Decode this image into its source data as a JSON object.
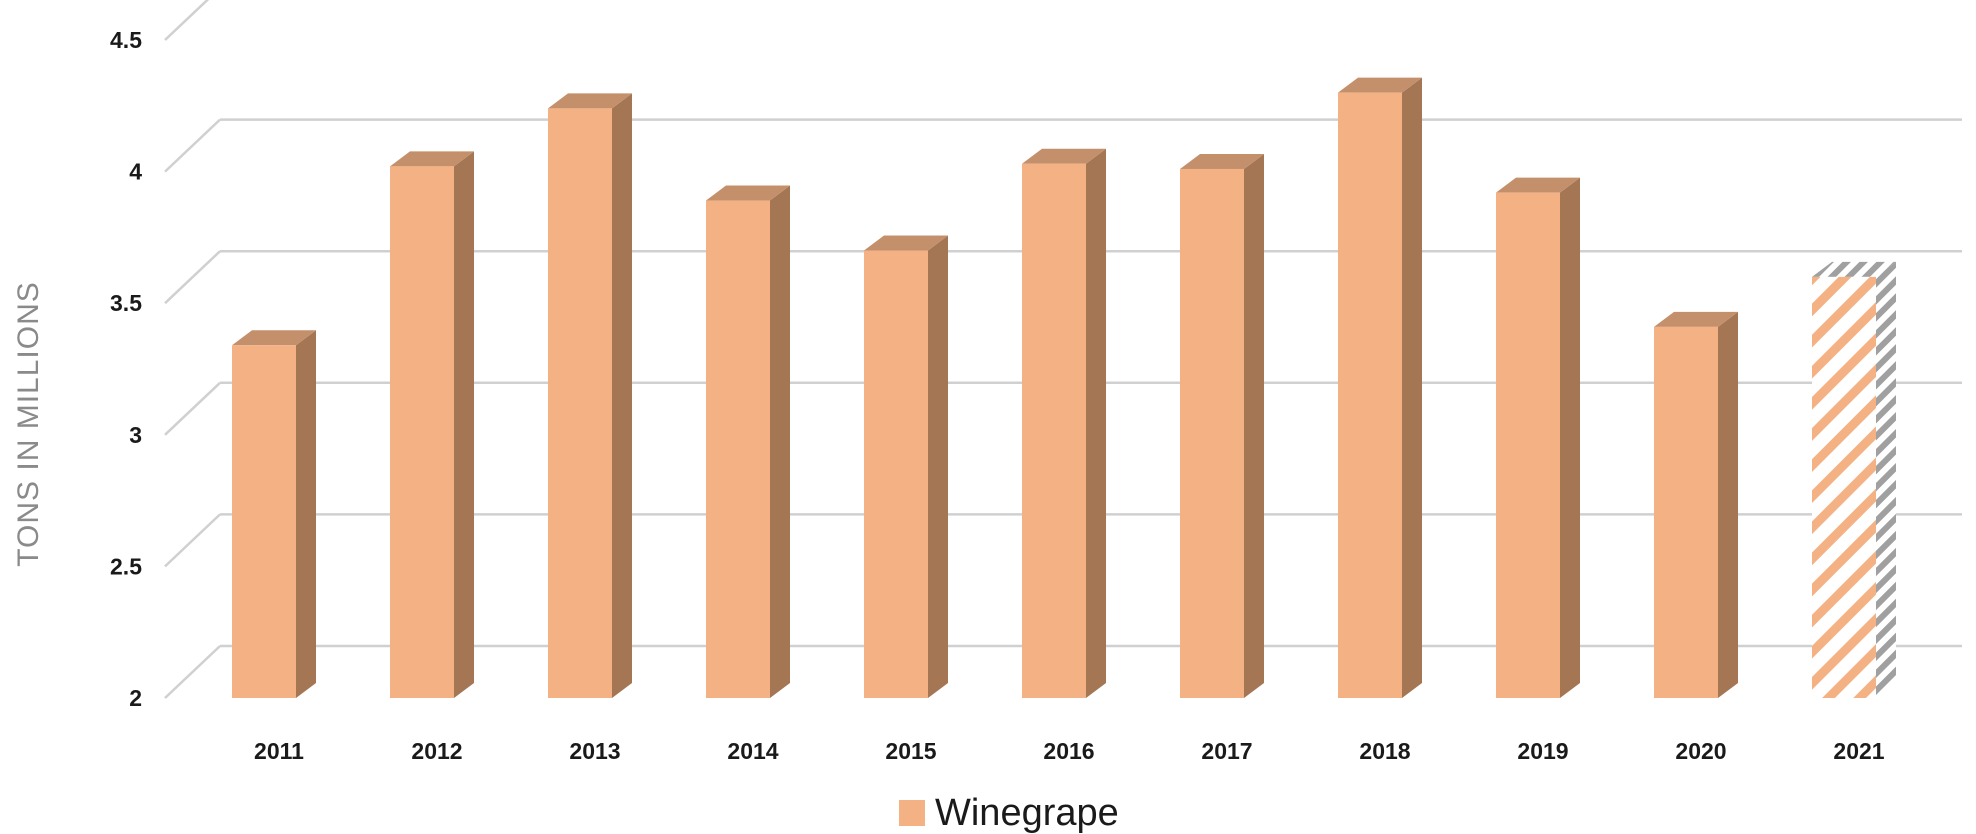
{
  "chart_data": {
    "type": "bar",
    "title": "",
    "xlabel": "",
    "ylabel": "TONS IN MILLIONS",
    "categories": [
      "2011",
      "2012",
      "2013",
      "2014",
      "2015",
      "2016",
      "2017",
      "2018",
      "2019",
      "2020",
      "2021"
    ],
    "series": [
      {
        "name": "Winegrape",
        "values": [
          3.34,
          4.02,
          4.24,
          3.89,
          3.7,
          4.03,
          4.01,
          4.3,
          3.92,
          3.41,
          3.6
        ],
        "hatched_categories": [
          "2021"
        ]
      }
    ],
    "ylim": [
      2,
      4.5
    ],
    "yticks": [
      2,
      2.5,
      3,
      3.5,
      4,
      4.5
    ],
    "ytick_labels": [
      "2",
      "2.5",
      "3",
      "3.5",
      "4",
      "4.5"
    ],
    "grid": true,
    "legend_position": "bottom-center",
    "three_d": true
  },
  "colors": {
    "bar_front": "#F4B183",
    "bar_side": "#A47654",
    "bar_top": "#C4906B",
    "hatch_side": "#A0A0A0",
    "grid": "#D0D0D0",
    "axis_title": "#8A8A8A"
  }
}
